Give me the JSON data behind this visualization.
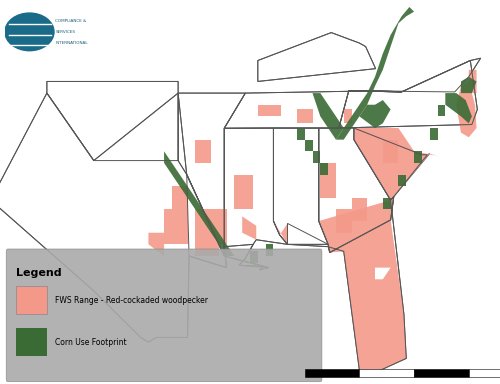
{
  "title": "",
  "fws_range_color": "#f4998a",
  "fws_range_alpha": 0.9,
  "corn_color": "#3a6b35",
  "corn_alpha": 0.9,
  "background_color": "#ffffff",
  "map_background": "#ffffff",
  "border_color": "#555555",
  "border_linewidth": 0.7,
  "legend_title": "Legend",
  "legend_label_1": "FWS Range - Red-cockaded woodpecker",
  "legend_label_2": "Corn Use Footprint",
  "legend_bg": "#a0a0a0",
  "logo_color_1": "#1a6b8a",
  "logo_color_2": "#2d8a4e",
  "extent_lon_min": -106,
  "extent_lon_max": -74,
  "extent_lat_min": 24,
  "extent_lat_max": 40.5
}
